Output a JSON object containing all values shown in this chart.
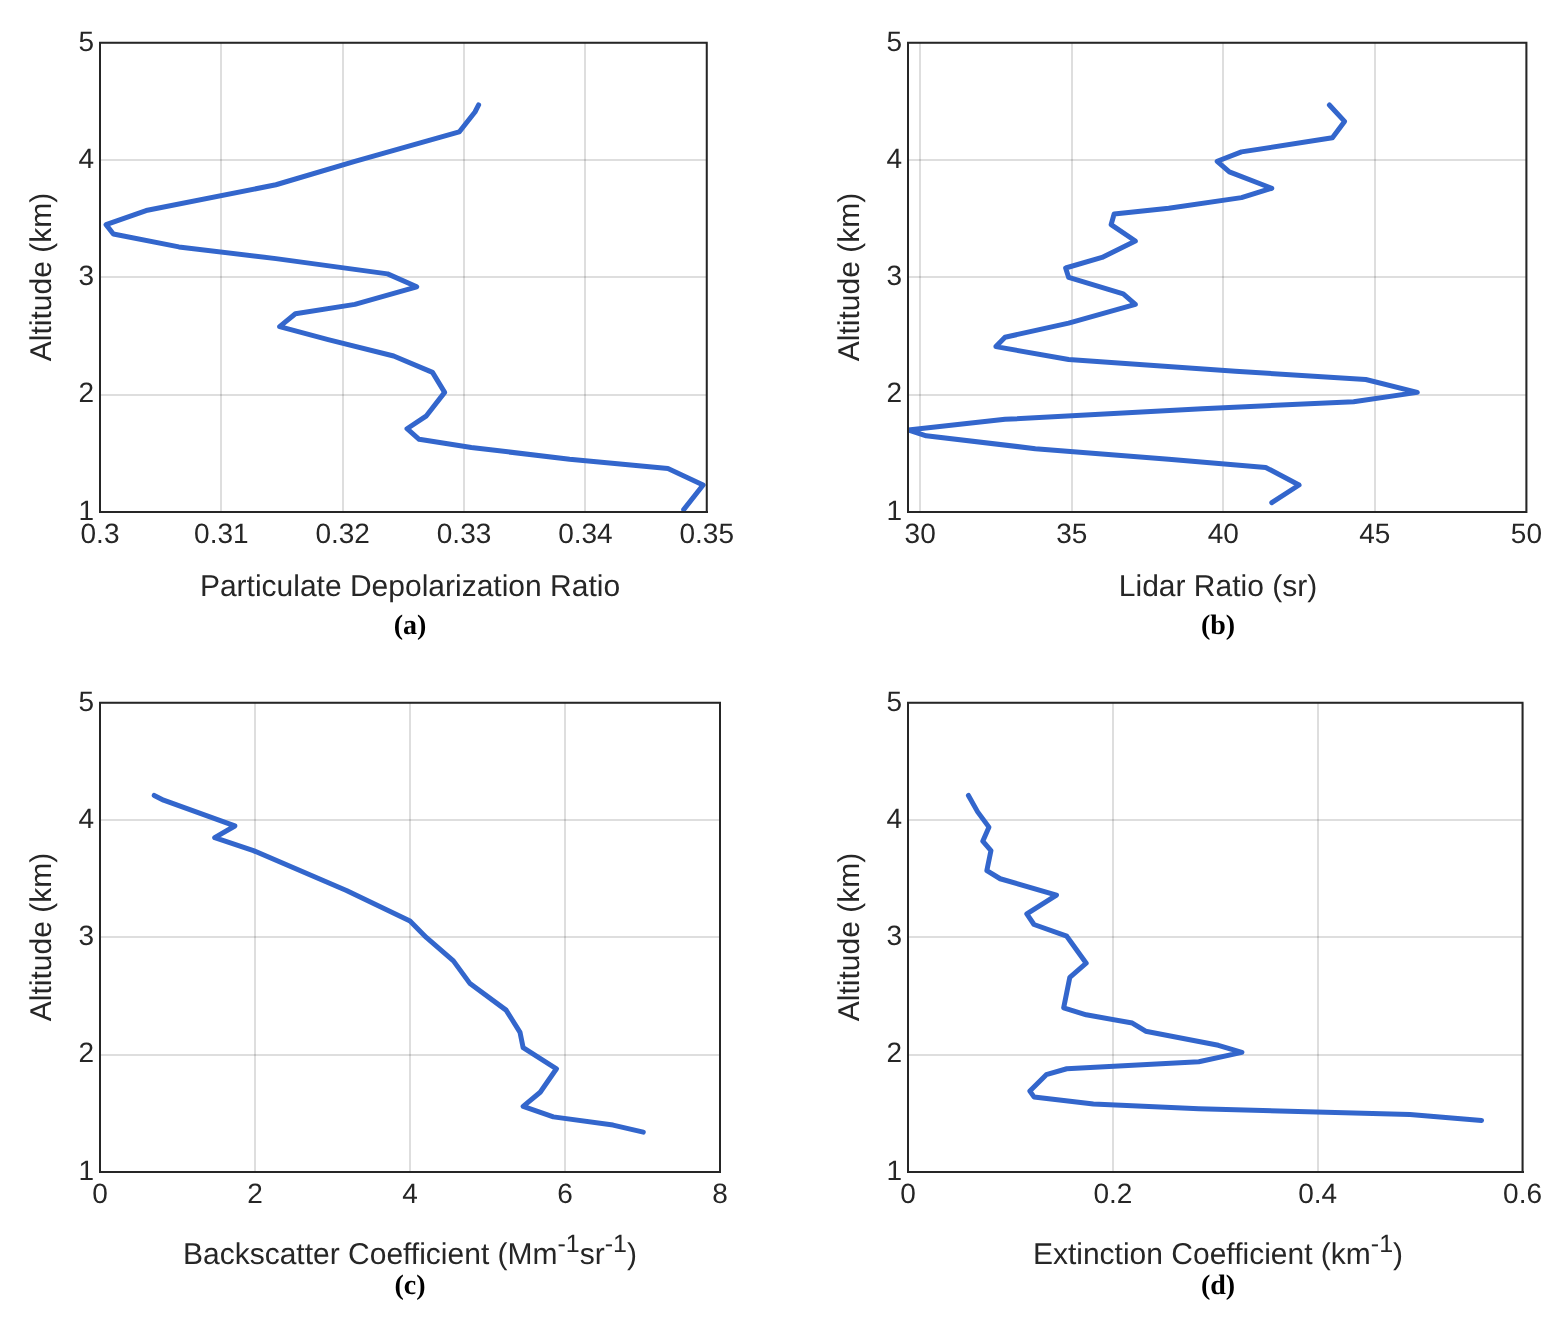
{
  "chart_data": [
    {
      "type": "line",
      "xlabel": "Particulate Depolarization Ratio",
      "ylabel": "Altitude (km)",
      "annotations": [
        "(a)"
      ],
      "grid": true,
      "xlim": [
        0.3,
        0.35
      ],
      "xticks": [
        0.3,
        0.31,
        0.32,
        0.33,
        0.34,
        0.35
      ],
      "ylim": [
        1,
        5
      ],
      "yticks": [
        1,
        2,
        3,
        4,
        5
      ],
      "series": [
        {
          "color": "#3366cc",
          "x": [
            0.3481,
            0.3497,
            0.3468,
            0.3387,
            0.3306,
            0.3263,
            0.3253,
            0.3269,
            0.3284,
            0.3274,
            0.3242,
            0.3188,
            0.3148,
            0.3161,
            0.321,
            0.3261,
            0.3237,
            0.3145,
            0.3065,
            0.3011,
            0.3005,
            0.3038,
            0.3145,
            0.321,
            0.3296,
            0.3309,
            0.3312
          ],
          "values": [
            1.02,
            1.23,
            1.37,
            1.45,
            1.55,
            1.62,
            1.71,
            1.82,
            2.02,
            2.19,
            2.33,
            2.47,
            2.58,
            2.69,
            2.77,
            2.92,
            3.03,
            3.16,
            3.26,
            3.37,
            3.45,
            3.57,
            3.79,
            3.99,
            4.24,
            4.41,
            4.47
          ]
        }
      ]
    },
    {
      "type": "line",
      "xlabel": "Lidar Ratio (sr)",
      "ylabel": "Altitude (km)",
      "annotations": [
        "(b)"
      ],
      "grid": true,
      "xlim": [
        29.6,
        50
      ],
      "xticks": [
        30,
        35,
        40,
        45,
        50
      ],
      "ylim": [
        1,
        5
      ],
      "yticks": [
        1,
        2,
        3,
        4,
        5
      ],
      "series": [
        {
          "color": "#3366cc",
          "x": [
            41.6,
            42.5,
            41.4,
            38.2,
            33.8,
            30.2,
            29.6,
            32.8,
            39.3,
            44.3,
            46.4,
            44.7,
            40.4,
            34.9,
            32.5,
            32.8,
            34.9,
            37.1,
            36.7,
            34.9,
            34.8,
            36.0,
            37.1,
            36.3,
            36.4,
            38.2,
            40.6,
            41.6,
            40.2,
            39.8,
            40.6,
            43.6,
            44.0,
            43.5
          ],
          "values": [
            1.08,
            1.23,
            1.38,
            1.45,
            1.54,
            1.65,
            1.7,
            1.79,
            1.88,
            1.94,
            2.02,
            2.13,
            2.2,
            2.3,
            2.41,
            2.49,
            2.61,
            2.77,
            2.86,
            3.0,
            3.08,
            3.17,
            3.31,
            3.45,
            3.54,
            3.59,
            3.68,
            3.76,
            3.9,
            3.99,
            4.07,
            4.19,
            4.33,
            4.47
          ]
        }
      ]
    },
    {
      "type": "line",
      "xlabel": "Backscatter Coefficient (Mm$^{-1}$sr$^{-1}$)",
      "ylabel": "Altitude (km)",
      "annotations": [
        "(c)"
      ],
      "grid": true,
      "xlim": [
        0,
        8
      ],
      "xticks": [
        0,
        2,
        4,
        6,
        8
      ],
      "ylim": [
        1,
        5
      ],
      "yticks": [
        1,
        2,
        3,
        4,
        5
      ],
      "series": [
        {
          "color": "#3366cc",
          "x": [
            0.7,
            0.82,
            1.74,
            1.48,
            1.98,
            3.18,
            4.0,
            4.21,
            4.56,
            4.77,
            5.24,
            5.42,
            5.46,
            5.89,
            5.68,
            5.46,
            5.85,
            6.62,
            7.01
          ],
          "values": [
            4.21,
            4.17,
            3.95,
            3.85,
            3.74,
            3.4,
            3.14,
            3.0,
            2.8,
            2.61,
            2.38,
            2.19,
            2.06,
            1.88,
            1.68,
            1.56,
            1.47,
            1.4,
            1.34
          ]
        }
      ]
    },
    {
      "type": "line",
      "xlabel": "Extinction Coefficient (km$^{-1}$)",
      "ylabel": "Altitude (km)",
      "annotations": [
        "(d)"
      ],
      "grid": true,
      "xlim": [
        0,
        0.6
      ],
      "xticks": [
        0,
        0.2,
        0.4,
        0.6
      ],
      "ylim": [
        1,
        5
      ],
      "yticks": [
        1,
        2,
        3,
        4,
        5
      ],
      "series": [
        {
          "color": "#3366cc",
          "x": [
            0.059,
            0.068,
            0.079,
            0.073,
            0.081,
            0.077,
            0.09,
            0.145,
            0.116,
            0.123,
            0.155,
            0.174,
            0.158,
            0.155,
            0.152,
            0.174,
            0.219,
            0.232,
            0.303,
            0.326,
            0.284,
            0.155,
            0.135,
            0.119,
            0.123,
            0.181,
            0.284,
            0.49,
            0.56
          ],
          "values": [
            4.21,
            4.07,
            3.94,
            3.82,
            3.74,
            3.57,
            3.5,
            3.36,
            3.2,
            3.11,
            3.01,
            2.78,
            2.66,
            2.53,
            2.4,
            2.34,
            2.27,
            2.2,
            2.08,
            2.02,
            1.94,
            1.88,
            1.83,
            1.69,
            1.64,
            1.58,
            1.54,
            1.49,
            1.44
          ]
        }
      ]
    }
  ]
}
